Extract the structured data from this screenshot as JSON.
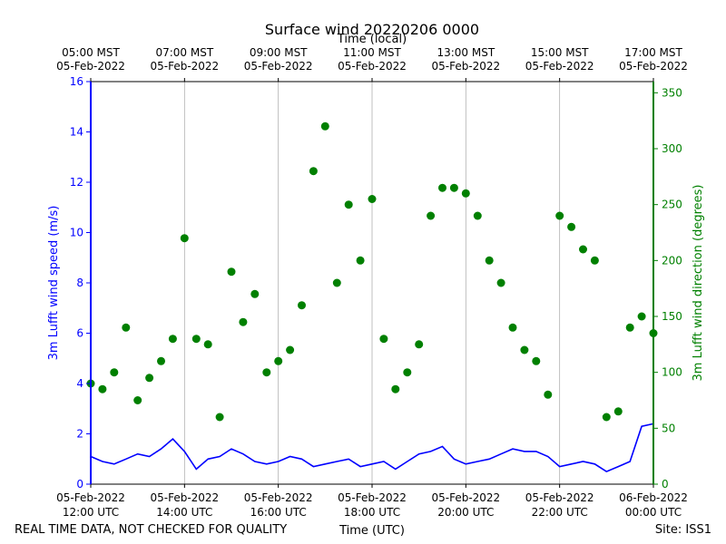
{
  "chart_data": {
    "type": "line+scatter",
    "title": "Surface wind 20220206 0000",
    "top_axis_label": "Time (local)",
    "top_ticks": [
      {
        "x": 0,
        "line1": "05:00 MST",
        "line2": "05-Feb-2022"
      },
      {
        "x": 2,
        "line1": "07:00 MST",
        "line2": "05-Feb-2022"
      },
      {
        "x": 4,
        "line1": "09:00 MST",
        "line2": "05-Feb-2022"
      },
      {
        "x": 6,
        "line1": "11:00 MST",
        "line2": "05-Feb-2022"
      },
      {
        "x": 8,
        "line1": "13:00 MST",
        "line2": "05-Feb-2022"
      },
      {
        "x": 10,
        "line1": "15:00 MST",
        "line2": "05-Feb-2022"
      },
      {
        "x": 12,
        "line1": "17:00 MST",
        "line2": "05-Feb-2022"
      }
    ],
    "bottom_axis_label": "Time (UTC)",
    "bottom_ticks": [
      {
        "x": 0,
        "line1": "05-Feb-2022",
        "line2": "12:00 UTC"
      },
      {
        "x": 2,
        "line1": "05-Feb-2022",
        "line2": "14:00 UTC"
      },
      {
        "x": 4,
        "line1": "05-Feb-2022",
        "line2": "16:00 UTC"
      },
      {
        "x": 6,
        "line1": "05-Feb-2022",
        "line2": "18:00 UTC"
      },
      {
        "x": 8,
        "line1": "05-Feb-2022",
        "line2": "20:00 UTC"
      },
      {
        "x": 10,
        "line1": "05-Feb-2022",
        "line2": "22:00 UTC"
      },
      {
        "x": 12,
        "line1": "06-Feb-2022",
        "line2": "00:00 UTC"
      }
    ],
    "x_range_hours_since_12utc": [
      0,
      12
    ],
    "left_axis": {
      "label": "3m Lufft wind speed (m/s)",
      "range": [
        0,
        16
      ],
      "ticks": [
        0,
        2,
        4,
        6,
        8,
        10,
        12,
        14,
        16
      ],
      "color": "#0000ff"
    },
    "right_axis": {
      "label": "3m Lufft wind direction (degrees)",
      "range": [
        0,
        360
      ],
      "ticks": [
        0,
        50,
        100,
        150,
        200,
        250,
        300,
        350
      ],
      "color": "#008000"
    },
    "vertical_grid": true,
    "speed_series": {
      "name": "wind speed",
      "color": "#0000ff",
      "x": [
        0,
        0.25,
        0.5,
        0.75,
        1,
        1.25,
        1.5,
        1.75,
        2,
        2.25,
        2.5,
        2.75,
        3,
        3.25,
        3.5,
        3.75,
        4,
        4.25,
        4.5,
        4.75,
        5,
        5.25,
        5.5,
        5.75,
        6,
        6.25,
        6.5,
        6.75,
        7,
        7.25,
        7.5,
        7.75,
        8,
        8.25,
        8.5,
        8.75,
        9,
        9.25,
        9.5,
        9.75,
        10,
        10.25,
        10.5,
        10.75,
        11,
        11.25,
        11.5,
        11.75,
        12
      ],
      "values": [
        1.1,
        0.9,
        0.8,
        1.0,
        1.2,
        1.1,
        1.4,
        1.8,
        1.3,
        0.6,
        1.0,
        1.1,
        1.4,
        1.2,
        0.9,
        0.8,
        0.9,
        1.1,
        1.0,
        0.7,
        0.8,
        0.9,
        1.0,
        0.7,
        0.8,
        0.9,
        0.6,
        0.9,
        1.2,
        1.3,
        1.5,
        1.0,
        0.8,
        0.9,
        1.0,
        1.2,
        1.4,
        1.3,
        1.3,
        1.1,
        0.7,
        0.8,
        0.9,
        0.8,
        0.5,
        0.7,
        0.9,
        2.3,
        2.4
      ]
    },
    "direction_series": {
      "name": "wind direction",
      "color": "#008000",
      "x": [
        0,
        0.25,
        0.5,
        0.75,
        1,
        1.25,
        1.5,
        1.75,
        2,
        2.25,
        2.5,
        2.75,
        3,
        3.25,
        3.5,
        3.75,
        4,
        4.25,
        4.5,
        4.75,
        5,
        5.25,
        5.5,
        5.75,
        6,
        6.25,
        6.5,
        6.75,
        7,
        7.25,
        7.5,
        7.75,
        8,
        8.25,
        8.5,
        8.75,
        9,
        9.25,
        9.5,
        9.75,
        10,
        10.25,
        10.5,
        10.75,
        11,
        11.25,
        11.5,
        11.75,
        12
      ],
      "values": [
        90,
        85,
        100,
        140,
        75,
        95,
        110,
        130,
        220,
        130,
        125,
        60,
        190,
        145,
        170,
        100,
        110,
        120,
        160,
        280,
        320,
        180,
        250,
        200,
        255,
        130,
        85,
        100,
        125,
        240,
        265,
        265,
        260,
        240,
        200,
        180,
        140,
        120,
        110,
        80,
        240,
        230,
        210,
        200,
        60,
        65,
        140,
        150,
        135
      ]
    }
  },
  "footer": {
    "left_note": "REAL TIME DATA, NOT CHECKED FOR QUALITY",
    "site": "Site: ISS1"
  }
}
